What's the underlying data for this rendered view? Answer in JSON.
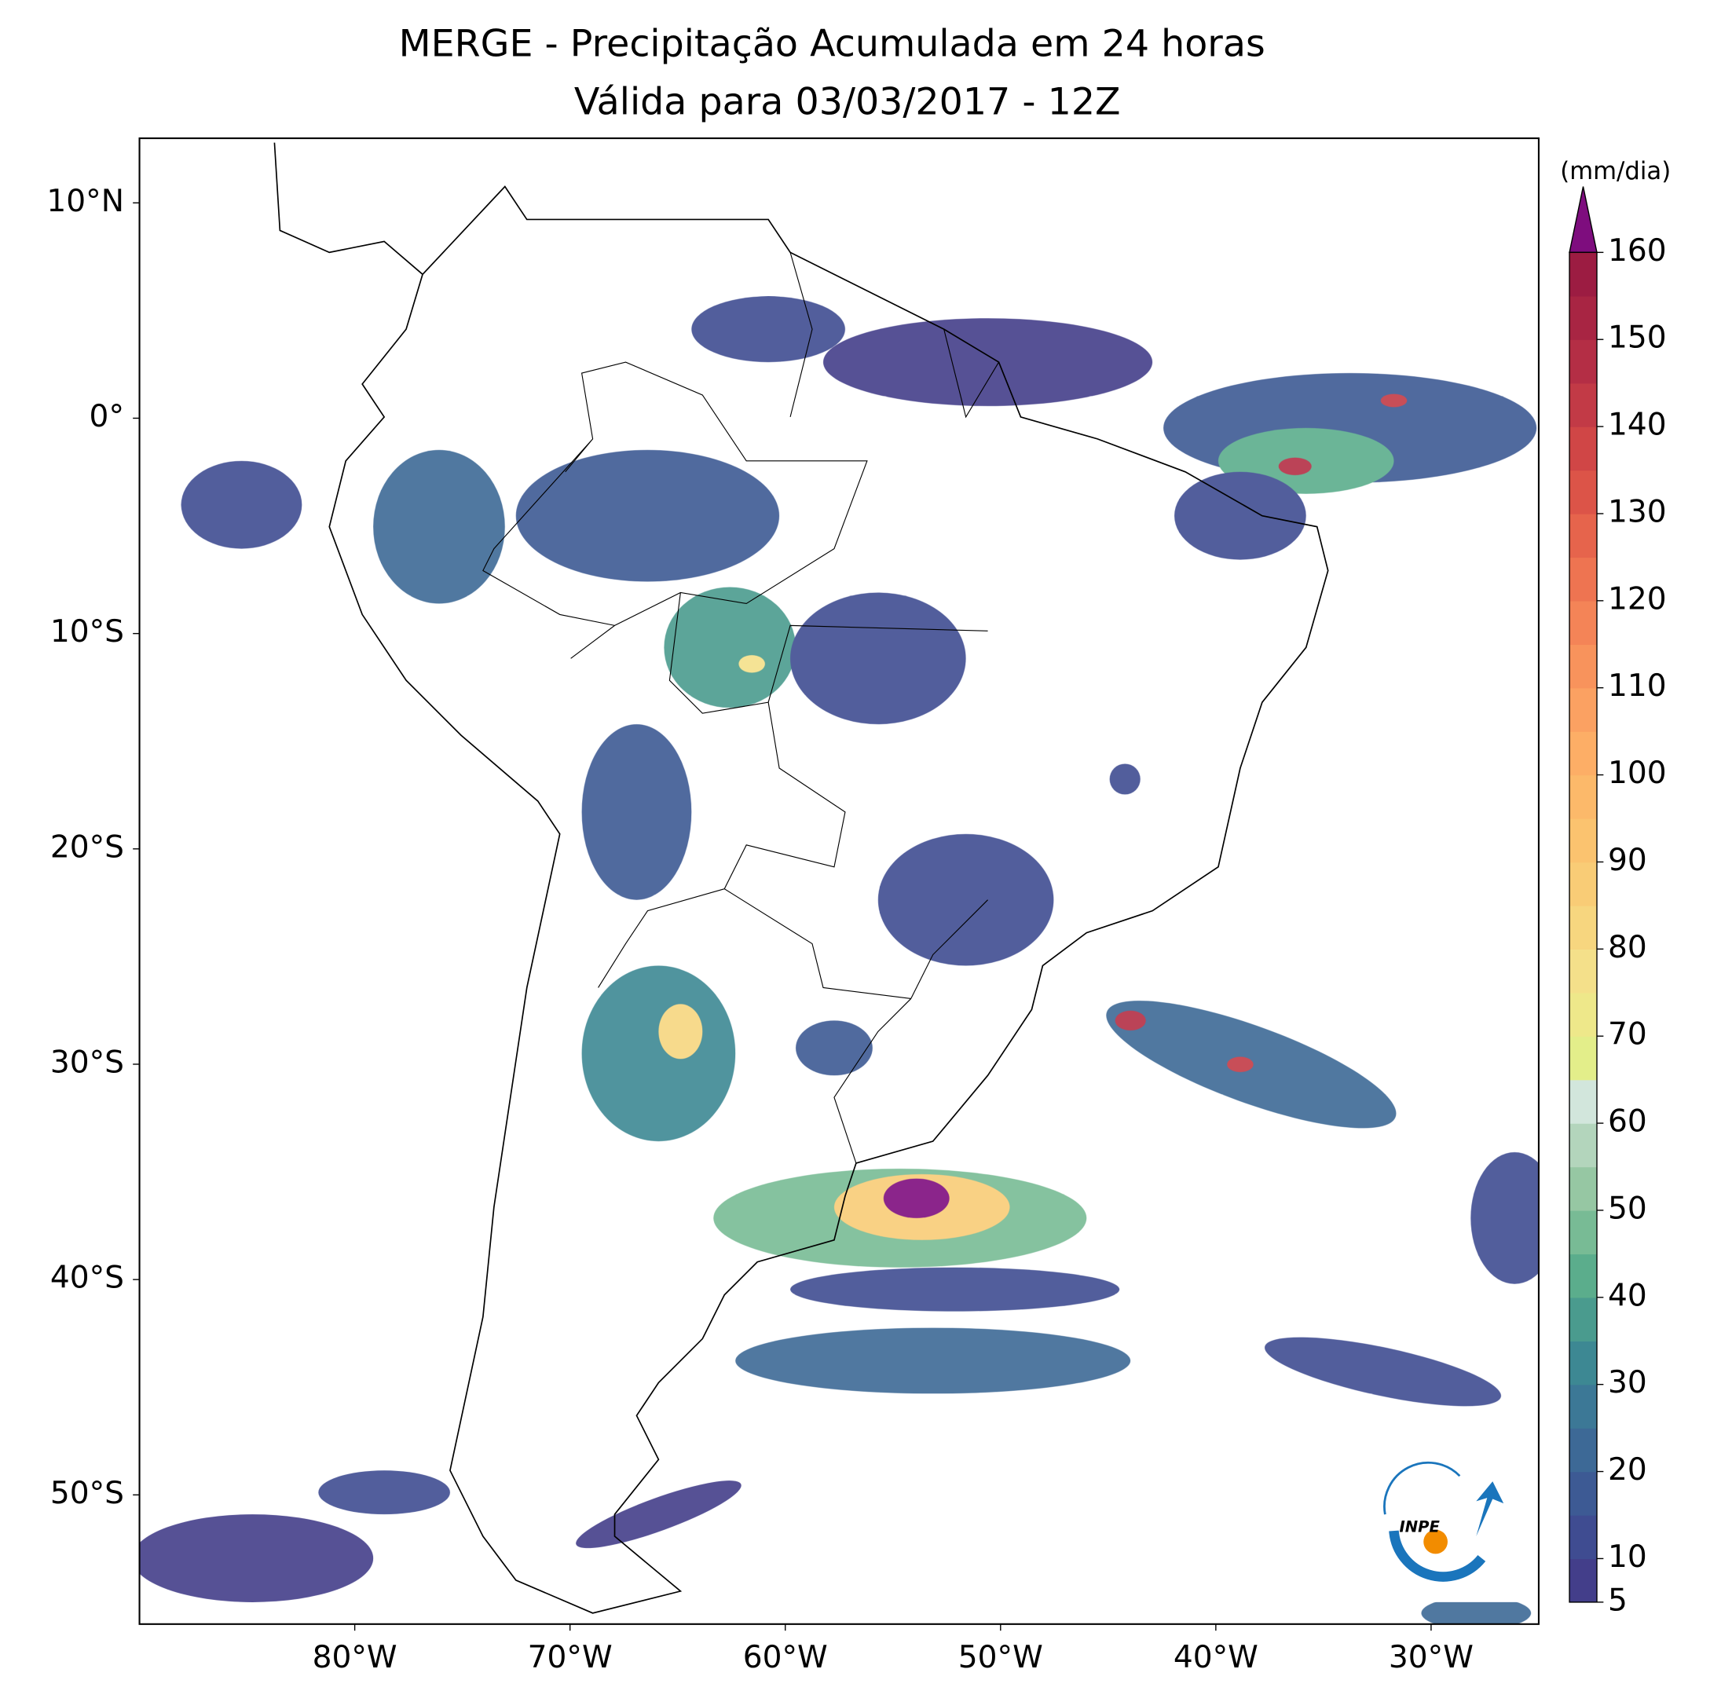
{
  "chart_data": {
    "type": "map",
    "title": "MERGE - Precipitação Acumulada em 24 horas",
    "subtitle": "Válida para 03/03/2017 - 12Z",
    "xlim": [
      -90,
      -25
    ],
    "ylim": [
      -56,
      13
    ],
    "xticks": [
      {
        "value": -80,
        "label": "80°W"
      },
      {
        "value": -70,
        "label": "70°W"
      },
      {
        "value": -60,
        "label": "60°W"
      },
      {
        "value": -50,
        "label": "50°W"
      },
      {
        "value": -40,
        "label": "40°W"
      },
      {
        "value": -30,
        "label": "30°W"
      }
    ],
    "yticks": [
      {
        "value": 10,
        "label": "10°N"
      },
      {
        "value": 0,
        "label": "0°"
      },
      {
        "value": -10,
        "label": "10°S"
      },
      {
        "value": -20,
        "label": "20°S"
      },
      {
        "value": -30,
        "label": "30°S"
      },
      {
        "value": -40,
        "label": "40°S"
      },
      {
        "value": -50,
        "label": "50°S"
      }
    ],
    "colorbar": {
      "label": "(mm/dia)",
      "clim": [
        5,
        160
      ],
      "ticks": [
        5,
        10,
        20,
        30,
        40,
        50,
        60,
        70,
        80,
        90,
        100,
        110,
        120,
        130,
        140,
        150,
        160
      ],
      "levels": [
        5,
        10,
        15,
        20,
        25,
        30,
        35,
        40,
        45,
        50,
        55,
        60,
        65,
        70,
        75,
        80,
        85,
        90,
        95,
        100,
        105,
        110,
        115,
        120,
        125,
        130,
        135,
        140,
        145,
        150,
        155,
        160
      ],
      "colors": [
        "#433e8a",
        "#3f4c91",
        "#3d5a94",
        "#3d6996",
        "#3c7896",
        "#3d8893",
        "#4a9b8e",
        "#5bad8c",
        "#78bb95",
        "#96c7a3",
        "#b3d5bc",
        "#d2e6dc",
        "#e3ee8a",
        "#eee88a",
        "#f4e08a",
        "#f7d67f",
        "#f9cc76",
        "#fbc36f",
        "#fcb96a",
        "#fdae66",
        "#fba162",
        "#f8935c",
        "#f48457",
        "#ee7451",
        "#e6644c",
        "#dc5448",
        "#d04646",
        "#c23a46",
        "#b42e45",
        "#a82543",
        "#9c1c42"
      ],
      "extend_color": "#7e0d7e"
    },
    "logo": "INPE"
  }
}
